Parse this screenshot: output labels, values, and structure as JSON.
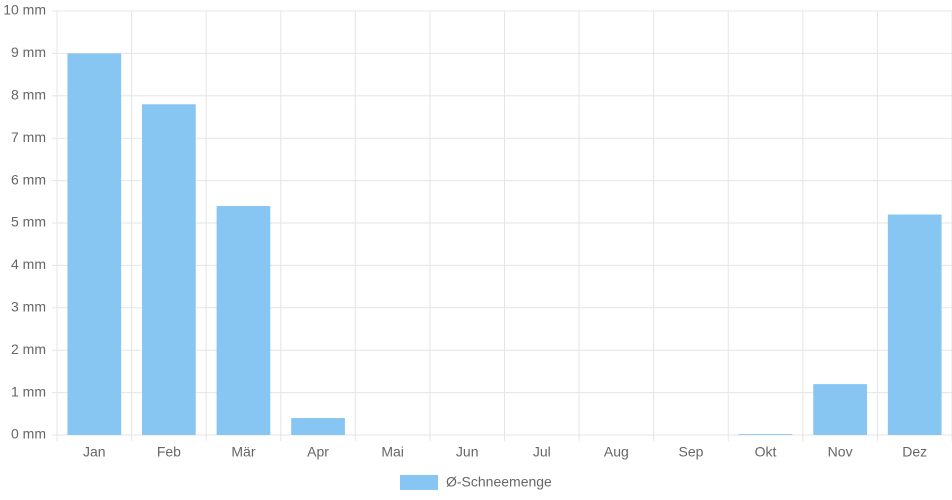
{
  "chart_data": {
    "type": "bar",
    "categories": [
      "Jan",
      "Feb",
      "Mär",
      "Apr",
      "Mai",
      "Jun",
      "Jul",
      "Aug",
      "Sep",
      "Okt",
      "Nov",
      "Dez"
    ],
    "series": [
      {
        "name": "Ø-Schneemenge",
        "color": "#87c5f2",
        "values": [
          9.0,
          7.8,
          5.4,
          0.4,
          0,
          0,
          0,
          0,
          0,
          0.02,
          1.2,
          5.2
        ]
      }
    ],
    "ylim": [
      0,
      10
    ],
    "yticks": [
      {
        "value": 0,
        "label": "0 mm"
      },
      {
        "value": 1,
        "label": "1 mm"
      },
      {
        "value": 2,
        "label": "2 mm"
      },
      {
        "value": 3,
        "label": "3 mm"
      },
      {
        "value": 4,
        "label": "4 mm"
      },
      {
        "value": 5,
        "label": "5 mm"
      },
      {
        "value": 6,
        "label": "6 mm"
      },
      {
        "value": 7,
        "label": "7 mm"
      },
      {
        "value": 8,
        "label": "8 mm"
      },
      {
        "value": 9,
        "label": "9 mm"
      },
      {
        "value": 10,
        "label": "10 mm"
      }
    ],
    "grid": true,
    "legend": "bottom"
  }
}
